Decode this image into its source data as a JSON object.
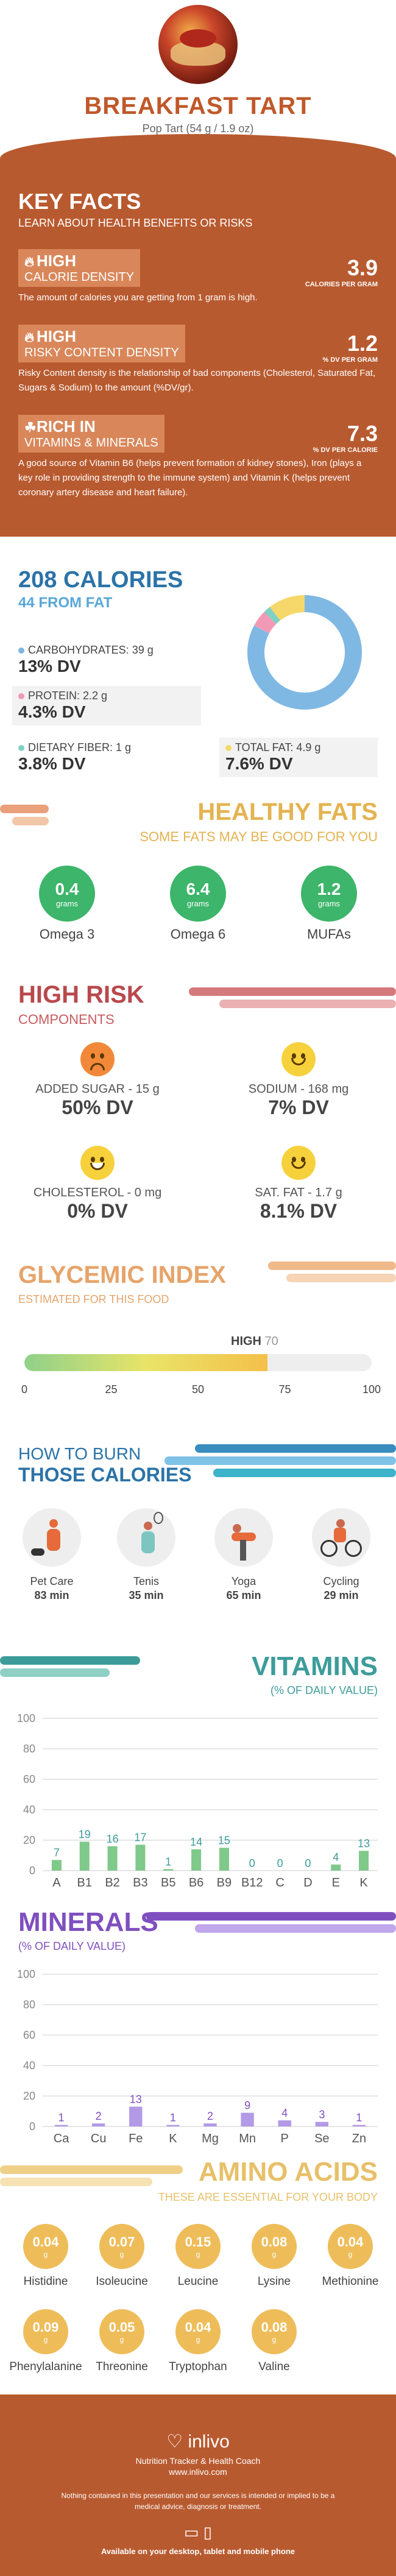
{
  "header": {
    "title": "BREAKFAST TART",
    "subtitle": "Pop Tart (54 g / 1.9 oz)"
  },
  "key_facts": {
    "title": "KEY FACTS",
    "subtitle": "LEARN ABOUT HEALTH BENEFITS OR RISKS",
    "facts": [
      {
        "level": "HIGH",
        "label": "CALORIE DENSITY",
        "value": "3.9",
        "unit": "CALORIES PER GRAM",
        "desc": "The amount of calories you are getting from 1 gram is high."
      },
      {
        "level": "HIGH",
        "label": "RISKY CONTENT DENSITY",
        "value": "1.2",
        "unit": "% DV PER GRAM",
        "desc": "Risky Content density is the relationship of bad components (Cholesterol, Saturated Fat, Sugars & Sodium) to the amount (%DV/gr)."
      },
      {
        "level": "RICH  IN",
        "label": "VITAMINS & MINERALS",
        "value": "7.3",
        "unit": "% DV PER CALORIE",
        "desc": "A good source of Vitamin B6 (helps prevent formation of kidney stones), Iron (plays a key role in providing strength to the immune system) and Vitamin K (helps prevent coronary artery disease and heart failure)."
      }
    ]
  },
  "calories": {
    "title": "208 CALORIES",
    "from_fat": "44 FROM FAT",
    "macros": [
      {
        "label": "CARBOHYDRATES: 39 g",
        "pct": "13% DV",
        "color": "#7fb5e0"
      },
      {
        "label": "PROTEIN: 2.2 g",
        "pct": "4.3% DV",
        "color": "#f29ab5"
      },
      {
        "label": "DIETARY FIBER: 1 g",
        "pct": "3.8% DV",
        "color": "#7fd1c4"
      },
      {
        "label": "TOTAL FAT: 4.9 g",
        "pct": "7.6% DV",
        "color": "#f6d86a"
      }
    ],
    "donut": [
      {
        "name": "carbohydrates",
        "value": 39,
        "color": "#80b8e4"
      },
      {
        "name": "protein",
        "value": 2.2,
        "color": "#f29ab5"
      },
      {
        "name": "fiber",
        "value": 1,
        "color": "#7fd1c4"
      },
      {
        "name": "fat",
        "value": 4.9,
        "color": "#f6d86a"
      }
    ]
  },
  "healthy_fats": {
    "title": "HEALTHY FATS",
    "subtitle": "SOME FATS MAY BE GOOD FOR YOU",
    "items": [
      {
        "value": "0.4",
        "unit": "grams",
        "name": "Omega 3"
      },
      {
        "value": "6.4",
        "unit": "grams",
        "name": "Omega 6"
      },
      {
        "value": "1.2",
        "unit": "grams",
        "name": "MUFAs"
      }
    ]
  },
  "high_risk": {
    "title": "HIGH RISK",
    "subtitle": "COMPONENTS",
    "items": [
      {
        "label": "ADDED SUGAR - 15 g",
        "pct": "50% DV",
        "face": "sad",
        "color": "#f2893a"
      },
      {
        "label": "SODIUM - 168 mg",
        "pct": "7% DV",
        "face": "happy",
        "color": "#f7d13c"
      },
      {
        "label": "CHOLESTEROL - 0 mg",
        "pct": "0% DV",
        "face": "grin",
        "color": "#f7d13c"
      },
      {
        "label": "SAT. FAT - 1.7 g",
        "pct": "8.1% DV",
        "face": "happy",
        "color": "#f7d13c"
      }
    ]
  },
  "glycemic": {
    "title": "GLYCEMIC INDEX",
    "subtitle": "ESTIMATED FOR THIS FOOD",
    "level": "HIGH",
    "value": "70",
    "value_num": 70,
    "ticks": [
      "0",
      "25",
      "50",
      "75",
      "100"
    ]
  },
  "burn": {
    "title_1": "HOW TO BURN",
    "title_2": "THOSE CALORIES",
    "activities": [
      {
        "name": "Pet Care",
        "minutes": "83 min",
        "icon": "dog-walking-icon"
      },
      {
        "name": "Tenis",
        "minutes": "35 min",
        "icon": "tennis-icon"
      },
      {
        "name": "Yoga",
        "minutes": "65 min",
        "icon": "yoga-icon"
      },
      {
        "name": "Cycling",
        "minutes": "29 min",
        "icon": "cycling-icon"
      }
    ]
  },
  "vitamins": {
    "title": "VITAMINS",
    "subtitle": "(% OF DAILY VALUE)"
  },
  "minerals": {
    "title": "MINERALS",
    "subtitle": "(% OF DAILY VALUE)"
  },
  "chart_data": [
    {
      "type": "bar",
      "categories": [
        "A",
        "B1",
        "B2",
        "B3",
        "B5",
        "B6",
        "B9",
        "B12",
        "C",
        "D",
        "E",
        "K"
      ],
      "values": [
        7,
        19,
        16,
        17,
        1,
        14,
        15,
        0,
        0,
        0,
        4,
        13
      ],
      "ylim": [
        0,
        100
      ],
      "yticks": [
        0,
        20,
        40,
        60,
        80,
        100
      ],
      "color": "#7fc98a",
      "label_color": "#3d9c9a"
    },
    {
      "type": "bar",
      "categories": [
        "Ca",
        "Cu",
        "Fe",
        "K",
        "Mg",
        "Mn",
        "P",
        "Se",
        "Zn"
      ],
      "values": [
        1,
        2,
        13,
        1,
        2,
        9,
        4,
        3,
        1
      ],
      "ylim": [
        0,
        100
      ],
      "yticks": [
        0,
        20,
        40,
        60,
        80,
        100
      ],
      "color": "#b29ae6",
      "label_color": "#7f4fbf"
    }
  ],
  "amino": {
    "title": "AMINO ACIDS",
    "subtitle": "THESE ARE ESSENTIAL FOR YOUR BODY",
    "items": [
      {
        "value": "0.04",
        "unit": "g",
        "name": "Histidine"
      },
      {
        "value": "0.07",
        "unit": "g",
        "name": "Isoleucine"
      },
      {
        "value": "0.15",
        "unit": "g",
        "name": "Leucine"
      },
      {
        "value": "0.08",
        "unit": "g",
        "name": "Lysine"
      },
      {
        "value": "0.04",
        "unit": "g",
        "name": "Methionine"
      },
      {
        "value": "0.09",
        "unit": "g",
        "name": "Phenylalanine"
      },
      {
        "value": "0.05",
        "unit": "g",
        "name": "Threonine"
      },
      {
        "value": "0.04",
        "unit": "g",
        "name": "Tryptophan"
      },
      {
        "value": "0.08",
        "unit": "g",
        "name": "Valine"
      }
    ]
  },
  "footer": {
    "logo": "inlivo",
    "tagline": "Nutrition Tracker & Health Coach",
    "url": "www.inlivo.com",
    "disclaimer": "Nothing contained in this presentation and our services is intended or implied to be a medical advice, diagnosis or treatment.",
    "available": "Available on your desktop, tablet and mobile phone"
  }
}
